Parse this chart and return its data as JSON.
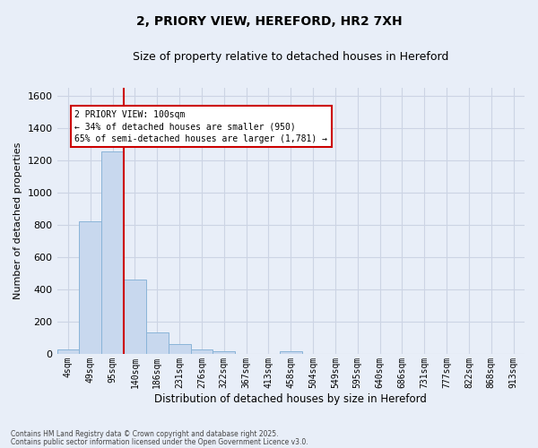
{
  "title1": "2, PRIORY VIEW, HEREFORD, HR2 7XH",
  "title2": "Size of property relative to detached houses in Hereford",
  "xlabel": "Distribution of detached houses by size in Hereford",
  "ylabel": "Number of detached properties",
  "bin_labels": [
    "4sqm",
    "49sqm",
    "95sqm",
    "140sqm",
    "186sqm",
    "231sqm",
    "276sqm",
    "322sqm",
    "367sqm",
    "413sqm",
    "458sqm",
    "504sqm",
    "549sqm",
    "595sqm",
    "640sqm",
    "686sqm",
    "731sqm",
    "777sqm",
    "822sqm",
    "868sqm",
    "913sqm"
  ],
  "bar_values": [
    25,
    820,
    1255,
    460,
    130,
    60,
    25,
    15,
    0,
    0,
    15,
    0,
    0,
    0,
    0,
    0,
    0,
    0,
    0,
    0,
    0
  ],
  "bar_color": "#c8d8ee",
  "bar_edge_color": "#8ab4d8",
  "grid_color": "#ccd4e4",
  "bg_color": "#e8eef8",
  "fig_color": "#e8eef8",
  "vline_x": 2.5,
  "vline_color": "#cc0000",
  "annotation_line1": "2 PRIORY VIEW: 100sqm",
  "annotation_line2": "← 34% of detached houses are smaller (950)",
  "annotation_line3": "65% of semi-detached houses are larger (1,781) →",
  "annotation_box_color": "#ffffff",
  "annotation_box_edge": "#cc0000",
  "ylim": [
    0,
    1650
  ],
  "yticks": [
    0,
    200,
    400,
    600,
    800,
    1000,
    1200,
    1400,
    1600
  ],
  "footer1": "Contains HM Land Registry data © Crown copyright and database right 2025.",
  "footer2": "Contains public sector information licensed under the Open Government Licence v3.0."
}
